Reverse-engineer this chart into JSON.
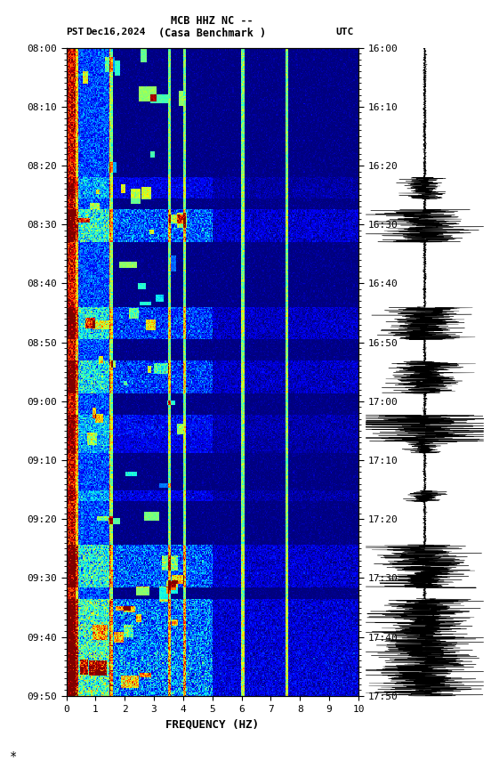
{
  "title_line1": "MCB HHZ NC --",
  "title_line2": "(Casa Benchmark )",
  "date_label": "Dec16,2024",
  "left_tz": "PST",
  "right_tz": "UTC",
  "left_times": [
    "08:00",
    "08:10",
    "08:20",
    "08:30",
    "08:40",
    "08:50",
    "09:00",
    "09:10",
    "09:20",
    "09:30",
    "09:40",
    "09:50"
  ],
  "right_times": [
    "16:00",
    "16:10",
    "16:20",
    "16:30",
    "16:40",
    "16:50",
    "17:00",
    "17:10",
    "17:20",
    "17:30",
    "17:40",
    "17:50"
  ],
  "freq_min": 0,
  "freq_max": 10,
  "freq_ticks": [
    0,
    1,
    2,
    3,
    4,
    5,
    6,
    7,
    8,
    9,
    10
  ],
  "xlabel": "FREQUENCY (HZ)",
  "time_steps": 600,
  "freq_steps": 300,
  "background_color": "#ffffff",
  "fig_width": 5.52,
  "fig_height": 8.64,
  "colormap": "jet",
  "seed": 42
}
